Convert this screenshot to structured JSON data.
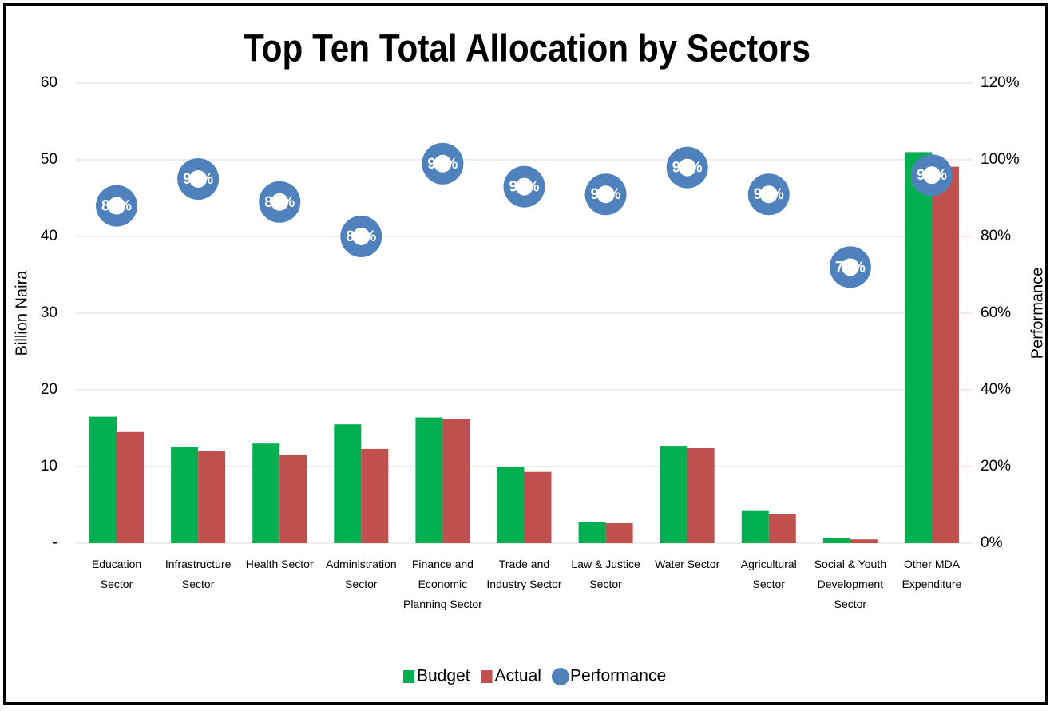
{
  "chart_data": {
    "type": "bar",
    "title": "Top Ten Total Allocation by Sectors",
    "y_label": "Billion Naira",
    "y2_label": "Performance",
    "categories": [
      "Education Sector",
      "Infrastructure Sector",
      "Health Sector",
      "Administration Sector",
      "Finance and Economic Planning Sector",
      "Trade and Industry Sector",
      "Law & Justice Sector",
      "Water Sector",
      "Agricultural Sector",
      "Social & Youth Development Sector",
      "Other MDA Expenditure"
    ],
    "series": [
      {
        "name": "Budget",
        "type": "bar",
        "color": "#00b050",
        "values": [
          16.5,
          12.6,
          13.0,
          15.5,
          16.4,
          10.0,
          2.8,
          12.7,
          4.2,
          0.7,
          51.0
        ]
      },
      {
        "name": "Actual",
        "type": "bar",
        "color": "#c0504d",
        "values": [
          14.5,
          12.0,
          11.5,
          12.3,
          16.2,
          9.3,
          2.6,
          12.4,
          3.8,
          0.5,
          49.1
        ]
      },
      {
        "name": "Performance",
        "type": "scatter",
        "axis": "y2",
        "color": "#4f81bd",
        "values": [
          88,
          95,
          89,
          80,
          99,
          93,
          91,
          98,
          91,
          72,
          96
        ],
        "value_labels": [
          "88%",
          "95%",
          "89%",
          "80%",
          "99%",
          "93%",
          "91%",
          "98%",
          "91%",
          "72%",
          "96%"
        ]
      }
    ],
    "ylim": [
      0,
      60
    ],
    "yticks": [
      {
        "value": 0,
        "label": "-"
      },
      10,
      20,
      30,
      40,
      50,
      60
    ],
    "y2lim": [
      0,
      120
    ],
    "y2ticks": [
      {
        "value": 0,
        "label": "0%"
      },
      {
        "value": 20,
        "label": "20%"
      },
      {
        "value": 40,
        "label": "40%"
      },
      {
        "value": 60,
        "label": "60%"
      },
      {
        "value": 80,
        "label": "80%"
      },
      {
        "value": 100,
        "label": "100%"
      },
      {
        "value": 120,
        "label": "120%"
      }
    ],
    "grid": true,
    "legend": "bottom"
  }
}
